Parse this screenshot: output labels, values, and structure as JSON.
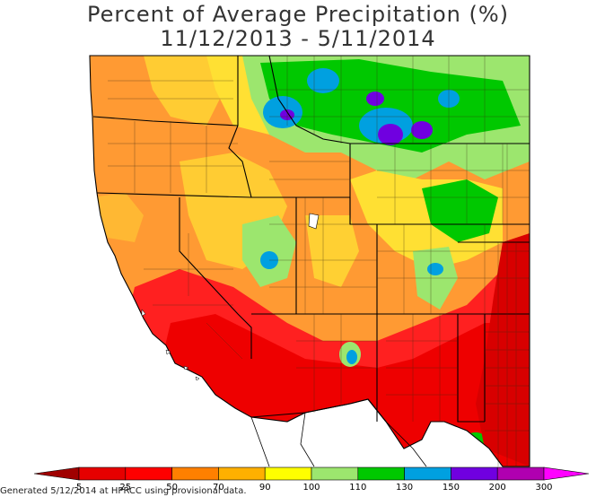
{
  "title": {
    "line1": "Percent of Average Precipitation (%)",
    "line2": "11/12/2013 - 5/11/2014"
  },
  "legend": {
    "tick_labels": [
      "5",
      "25",
      "50",
      "70",
      "90",
      "100",
      "110",
      "130",
      "150",
      "200",
      "300"
    ],
    "colors": [
      "#a00000",
      "#e60000",
      "#ff0000",
      "#ff8000",
      "#ffb000",
      "#ffff00",
      "#9ce66e",
      "#00c800",
      "#00a0e0",
      "#7000e0",
      "#b000b0",
      "#ff00ff"
    ]
  },
  "footer": {
    "credit": "Generated 5/12/2014 at HPRCC using provisional data."
  },
  "colors": {
    "state_border": "#000000",
    "county_border": "#333333",
    "land_default": "#ff9030",
    "ocean": "#ffffff"
  }
}
